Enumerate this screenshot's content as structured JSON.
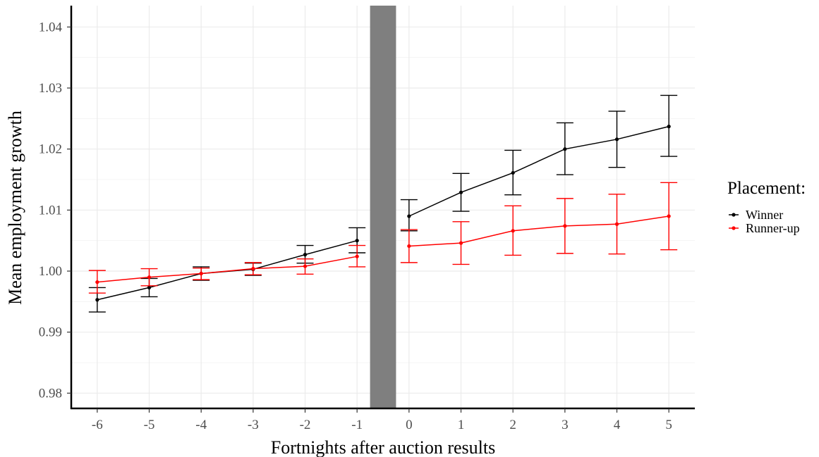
{
  "chart_data": {
    "type": "line",
    "title": "",
    "xlabel": "Fortnights after auction results",
    "ylabel": "Mean employment growth",
    "x_ticks": [
      -6,
      -5,
      -4,
      -3,
      -2,
      -1,
      0,
      1,
      2,
      3,
      4,
      5
    ],
    "y_ticks": [
      0.98,
      0.99,
      1.0,
      1.01,
      1.02,
      1.03,
      1.04
    ],
    "y_tick_labels": [
      "0.98",
      "0.99",
      "1.00",
      "1.01",
      "1.02",
      "1.03",
      "1.04"
    ],
    "ylim": [
      0.9775,
      1.0435
    ],
    "xlim": [
      -6.5,
      5.5
    ],
    "grid": true,
    "shaded_band": {
      "x_from": -0.75,
      "x_to": -0.25,
      "color": "#7f7f7f"
    },
    "legend": {
      "title": "Placement:",
      "position": "right"
    },
    "series": [
      {
        "name": "Winner",
        "color": "#000000",
        "segments": [
          {
            "x": [
              -6,
              -5,
              -4,
              -3,
              -2,
              -1
            ],
            "y": [
              0.9953,
              0.9973,
              0.9996,
              1.0003,
              1.0027,
              1.005
            ],
            "lower": [
              0.9933,
              0.9958,
              0.9985,
              0.9993,
              1.0013,
              1.003
            ],
            "upper": [
              0.9973,
              0.9988,
              1.0007,
              1.0013,
              1.0042,
              1.0071
            ]
          },
          {
            "x": [
              0,
              1,
              2,
              3,
              4,
              5
            ],
            "y": [
              1.009,
              1.0129,
              1.0161,
              1.02,
              1.0216,
              1.0237
            ],
            "lower": [
              1.0066,
              1.0098,
              1.0125,
              1.0158,
              1.017,
              1.0188
            ],
            "upper": [
              1.0117,
              1.016,
              1.0198,
              1.0243,
              1.0262,
              1.0288
            ]
          }
        ]
      },
      {
        "name": "Runner-up",
        "color": "#ff0000",
        "segments": [
          {
            "x": [
              -6,
              -5,
              -4,
              -3,
              -2,
              -1
            ],
            "y": [
              0.9982,
              0.999,
              0.9996,
              1.0004,
              1.0008,
              1.0024
            ],
            "lower": [
              0.9964,
              0.9976,
              0.9986,
              0.9994,
              0.9995,
              1.0007
            ],
            "upper": [
              1.0001,
              1.0004,
              1.0005,
              1.0014,
              1.002,
              1.0042
            ]
          },
          {
            "x": [
              0,
              1,
              2,
              3,
              4,
              5
            ],
            "y": [
              1.0041,
              1.0046,
              1.0066,
              1.0074,
              1.0077,
              1.009
            ],
            "lower": [
              1.0014,
              1.0011,
              1.0026,
              1.0029,
              1.0028,
              1.0035
            ],
            "upper": [
              1.0068,
              1.0081,
              1.0107,
              1.0119,
              1.0126,
              1.0145
            ]
          }
        ]
      }
    ]
  }
}
